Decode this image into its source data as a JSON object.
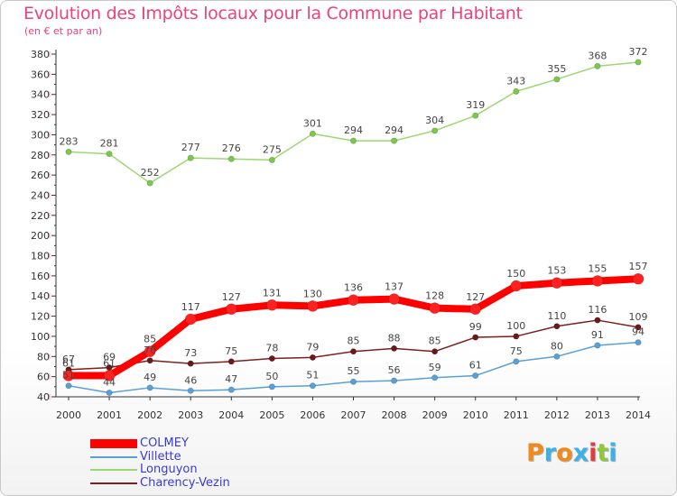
{
  "title": "Evolution des Impôts locaux pour la Commune par Habitant",
  "subtitle": "(en € et par an)",
  "logo": {
    "text": "Proxiti",
    "colors": [
      "#f08a1c",
      "#3cb0e8",
      "#f08a1c",
      "#3cb0e8",
      "#e23c3c",
      "#8cc83c",
      "#3cb0e8"
    ]
  },
  "chart_data": {
    "type": "line",
    "x": [
      "2000",
      "2001",
      "2002",
      "2003",
      "2004",
      "2005",
      "2006",
      "2007",
      "2008",
      "2009",
      "2010",
      "2011",
      "2012",
      "2013",
      "2014"
    ],
    "ylim": [
      40,
      380
    ],
    "yticks": [
      40,
      60,
      80,
      100,
      120,
      140,
      160,
      180,
      200,
      220,
      240,
      260,
      280,
      300,
      320,
      340,
      360,
      380
    ],
    "grid": false,
    "legend_position": "bottom-left",
    "series": [
      {
        "name": "COLMEY",
        "color": "#ff0000",
        "values": [
          61,
          61,
          85,
          117,
          127,
          131,
          130,
          136,
          137,
          128,
          127,
          150,
          153,
          155,
          157
        ]
      },
      {
        "name": "Villette",
        "color": "#5aa0d8",
        "values": [
          51,
          44,
          49,
          46,
          47,
          50,
          51,
          55,
          56,
          59,
          61,
          75,
          80,
          91,
          94
        ]
      },
      {
        "name": "Longuyon",
        "color": "#9ad872",
        "values": [
          283,
          281,
          252,
          277,
          276,
          275,
          301,
          294,
          294,
          304,
          319,
          343,
          355,
          368,
          372
        ]
      },
      {
        "name": "Charency-Vezin",
        "color": "#7a2020",
        "values": [
          67,
          69,
          76,
          73,
          75,
          78,
          79,
          85,
          88,
          85,
          99,
          100,
          110,
          116,
          109
        ]
      }
    ]
  }
}
